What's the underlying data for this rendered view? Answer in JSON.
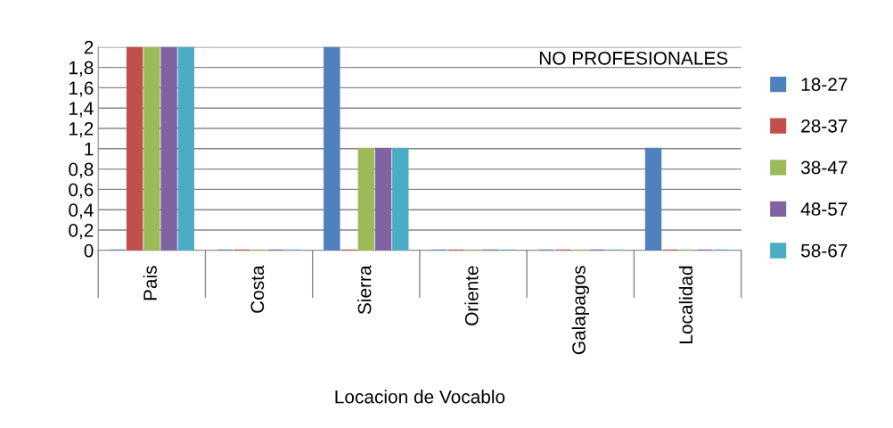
{
  "chart_data": {
    "type": "bar",
    "title": "NO PROFESIONALES",
    "xlabel": "Locacion de Vocablo",
    "categories": [
      "Pais",
      "Costa",
      "Sierra",
      "Oriente",
      "Galapagos",
      "Localidad"
    ],
    "series": [
      {
        "name": "18-27",
        "color": "#4f81bd",
        "values": [
          0,
          0,
          2,
          0,
          0,
          1
        ]
      },
      {
        "name": "28-37",
        "color": "#c0504d",
        "values": [
          2,
          0,
          0,
          0,
          0,
          0
        ]
      },
      {
        "name": "38-47",
        "color": "#9bbb59",
        "values": [
          2,
          0,
          1,
          0,
          0,
          0
        ]
      },
      {
        "name": "48-57",
        "color": "#8064a2",
        "values": [
          2,
          0,
          1,
          0,
          0,
          0
        ]
      },
      {
        "name": "58-67",
        "color": "#4bacc6",
        "values": [
          2,
          0,
          1,
          0,
          0,
          0
        ]
      }
    ],
    "ylim": [
      0,
      2
    ],
    "yticks": [
      0,
      {
        "value": 0.2,
        "label": "0,2"
      },
      {
        "value": 0.4,
        "label": "0,4"
      },
      {
        "value": 0.6,
        "label": "0,6"
      },
      {
        "value": 0.8,
        "label": "0,8"
      },
      1,
      {
        "value": 1.2,
        "label": "1,2"
      },
      {
        "value": 1.4,
        "label": "1,4"
      },
      {
        "value": 1.6,
        "label": "1,6"
      },
      {
        "value": 1.8,
        "label": "1,8"
      },
      2
    ],
    "grid": "y",
    "legend": "right"
  }
}
